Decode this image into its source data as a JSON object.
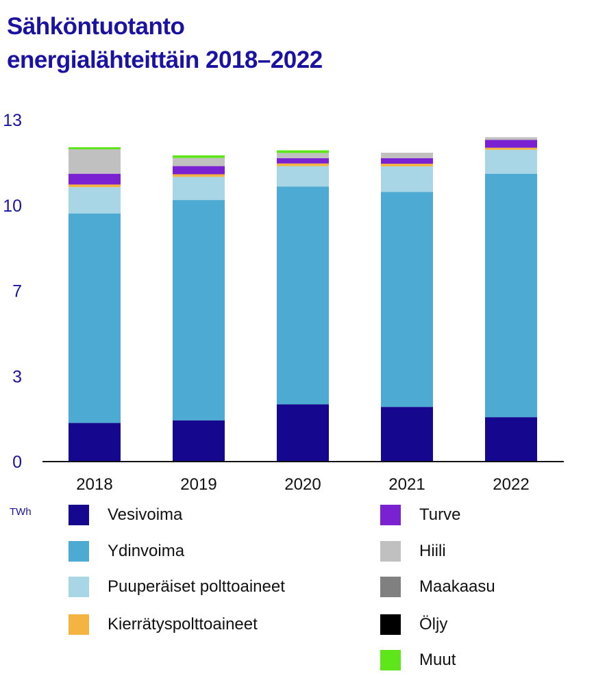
{
  "title": {
    "line1": "Sähköntuotanto",
    "line2": "energialähteittäin 2018–2022"
  },
  "chart_data": {
    "type": "bar",
    "stacked": true,
    "unit": "TWh",
    "categories": [
      "2018",
      "2019",
      "2020",
      "2021",
      "2022"
    ],
    "y_ticks": [
      "0",
      "3",
      "7",
      "10",
      "13"
    ],
    "y_tick_values": [
      0,
      3.25,
      6.5,
      9.75,
      13
    ],
    "ylim": [
      0,
      13
    ],
    "grid": false,
    "series": [
      {
        "name": "Vesivoima",
        "color": "#15088f",
        "values": [
          1.47,
          1.57,
          2.18,
          2.08,
          1.69
        ]
      },
      {
        "name": "Ydinvoima",
        "color": "#4dabd3",
        "values": [
          7.97,
          8.38,
          8.28,
          8.18,
          9.26
        ]
      },
      {
        "name": "Puuperäiset polttoaineet",
        "color": "#a8d6e7",
        "values": [
          1.0,
          0.88,
          0.78,
          0.97,
          0.91
        ]
      },
      {
        "name": "Kierrätyspolttoaineet",
        "color": "#f4b441",
        "values": [
          0.1,
          0.1,
          0.1,
          0.1,
          0.08
        ]
      },
      {
        "name": "Turve",
        "color": "#7a22d1",
        "values": [
          0.41,
          0.31,
          0.2,
          0.21,
          0.3
        ]
      },
      {
        "name": "Hiili",
        "color": "#c0c0c0",
        "values": [
          0.93,
          0.31,
          0.2,
          0.21,
          0.1
        ]
      },
      {
        "name": "Maakaasu",
        "color": "#808080",
        "values": [
          0.0,
          0.0,
          0.0,
          0.0,
          0.0
        ]
      },
      {
        "name": "Öljy",
        "color": "#000000",
        "values": [
          0.0,
          0.0,
          0.0,
          0.0,
          0.0
        ]
      },
      {
        "name": "Muut",
        "color": "#5fe61a",
        "values": [
          0.08,
          0.1,
          0.1,
          0.0,
          0.0
        ]
      }
    ]
  }
}
